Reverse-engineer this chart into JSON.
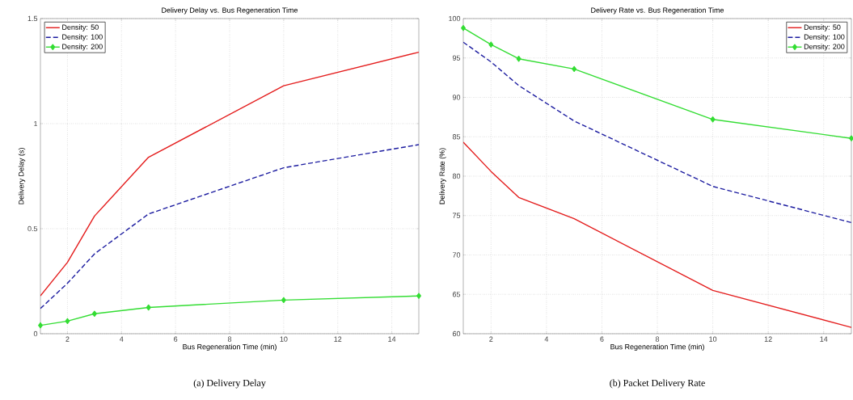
{
  "chart_data": [
    {
      "type": "line",
      "title": "Delivery Delay vs. Bus Regeneration Time",
      "xlabel": "Bus Regeneration Time (min)",
      "ylabel": "Delivery Delay (s)",
      "x": [
        1,
        2,
        3,
        5,
        10,
        15
      ],
      "series": [
        {
          "name": "Density: 50",
          "color": "#e41c1c",
          "values": [
            0.18,
            0.34,
            0.56,
            0.84,
            1.18,
            1.34
          ],
          "marker": "none",
          "line_style": "solid"
        },
        {
          "name": "Density: 100",
          "color": "#1c1ca0",
          "values": [
            0.12,
            0.24,
            0.38,
            0.57,
            0.79,
            0.9
          ],
          "marker": "none",
          "line_style": "dashed"
        },
        {
          "name": "Density: 200",
          "color": "#33dd33",
          "values": [
            0.04,
            0.06,
            0.095,
            0.125,
            0.16,
            0.18
          ],
          "marker": "diamond",
          "line_style": "solid"
        }
      ],
      "xlim": [
        1,
        15
      ],
      "ylim": [
        0,
        1.5
      ],
      "xticks": [
        2,
        4,
        6,
        8,
        10,
        12,
        14
      ],
      "yticks": [
        0,
        0.5,
        1,
        1.5
      ],
      "grid": true,
      "legend": "top left",
      "annotations": [
        "(a) Delivery Delay"
      ]
    },
    {
      "type": "line",
      "title": "Delivery Rate vs. Bus Regeneration Time",
      "xlabel": "Bus Regeneration Time (min)",
      "ylabel": "Delivery Rate (%)",
      "x": [
        1,
        2,
        3,
        5,
        10,
        15
      ],
      "series": [
        {
          "name": "Density: 50",
          "color": "#e41c1c",
          "values": [
            84.3,
            80.6,
            77.3,
            74.6,
            65.5,
            60.8
          ],
          "marker": "none",
          "line_style": "solid"
        },
        {
          "name": "Density: 100",
          "color": "#1c1ca0",
          "values": [
            97,
            94.5,
            91.5,
            87,
            78.7,
            74.1
          ],
          "marker": "none",
          "line_style": "dashed"
        },
        {
          "name": "Density: 200",
          "color": "#33dd33",
          "values": [
            98.8,
            96.7,
            94.9,
            93.6,
            87.2,
            84.8
          ],
          "marker": "diamond",
          "line_style": "solid"
        }
      ],
      "xlim": [
        1,
        15
      ],
      "ylim": [
        60,
        100
      ],
      "xticks": [
        2,
        4,
        6,
        8,
        10,
        12,
        14
      ],
      "yticks": [
        60,
        65,
        70,
        75,
        80,
        85,
        90,
        95,
        100
      ],
      "grid": true,
      "legend": "top right",
      "annotations": [
        "(b) Packet Delivery Rate"
      ]
    }
  ]
}
